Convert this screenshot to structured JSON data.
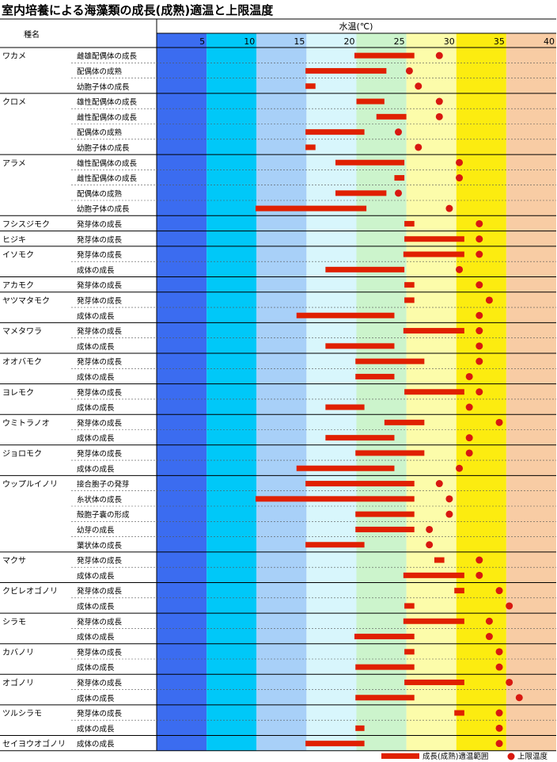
{
  "title": "室内培養による海藻類の成長(成熟)適温と上限温度",
  "chart_data": {
    "type": "range-dot",
    "title": "室内培養による海藻類の成長(成熟)適温と上限温度",
    "xlabel": "水温(℃)",
    "row_header": "種名",
    "xlim": [
      0,
      40
    ],
    "xticks": [
      5,
      10,
      15,
      20,
      25,
      30,
      35,
      40
    ],
    "bands": [
      {
        "from": 0,
        "to": 5,
        "color": "#3b6cf0"
      },
      {
        "from": 5,
        "to": 10,
        "color": "#00c8f8"
      },
      {
        "from": 10,
        "to": 15,
        "color": "#a8d0f8"
      },
      {
        "from": 15,
        "to": 20,
        "color": "#d8f6fc"
      },
      {
        "from": 20,
        "to": 25,
        "color": "#ccf4cc"
      },
      {
        "from": 25,
        "to": 30,
        "color": "#fcfcaa"
      },
      {
        "from": 30,
        "to": 35,
        "color": "#fcec10"
      },
      {
        "from": 35,
        "to": 40,
        "color": "#f8cca4"
      }
    ],
    "legend": {
      "range": "成長(成熟)適温範囲",
      "upper": "上限温度",
      "position": "bottom-right"
    },
    "colors": {
      "bar": "#e02000",
      "dot": "#d81810"
    },
    "species": [
      {
        "name": "ワカメ",
        "rows": [
          {
            "stage": "雌雄配偶体の成長",
            "range": [
              19.8,
              25.8
            ],
            "upper": 28.3
          },
          {
            "stage": "配偶体の成熟",
            "range": [
              14.9,
              23.0
            ],
            "upper": 25.3
          },
          {
            "stage": "幼胞子体の成長",
            "range": [
              14.9,
              15.9
            ],
            "upper": 26.2
          }
        ]
      },
      {
        "name": "クロメ",
        "rows": [
          {
            "stage": "雄性配偶体の成長",
            "range": [
              20.0,
              22.8
            ],
            "upper": 28.3
          },
          {
            "stage": "雌性配偶体の成長",
            "range": [
              22.0,
              25.0
            ],
            "upper": 28.3
          },
          {
            "stage": "配偶体の成熟",
            "range": [
              14.9,
              20.8
            ],
            "upper": 24.2
          },
          {
            "stage": "幼胞子体の成長",
            "range": [
              14.9,
              15.9
            ],
            "upper": 26.2
          }
        ]
      },
      {
        "name": "アラメ",
        "rows": [
          {
            "stage": "雄性配偶体の成長",
            "range": [
              17.9,
              24.8
            ],
            "upper": 30.3
          },
          {
            "stage": "雌性配偶体の成長",
            "range": [
              23.8,
              24.8
            ],
            "upper": 30.3
          },
          {
            "stage": "配偶体の成熟",
            "range": [
              17.9,
              23.0
            ],
            "upper": 24.2
          },
          {
            "stage": "幼胞子体の成長",
            "range": [
              9.9,
              21.0
            ],
            "upper": 29.3
          }
        ]
      },
      {
        "name": "フシスジモク",
        "rows": [
          {
            "stage": "発芽体の成長",
            "range": [
              24.8,
              25.8
            ],
            "upper": 32.3
          }
        ]
      },
      {
        "name": "ヒジキ",
        "rows": [
          {
            "stage": "発芽体の成長",
            "range": [
              24.8,
              30.8
            ],
            "upper": 32.3
          }
        ]
      },
      {
        "name": "イソモク",
        "rows": [
          {
            "stage": "発芽体の成長",
            "range": [
              24.7,
              30.8
            ],
            "upper": 32.3
          },
          {
            "stage": "成体の成長",
            "range": [
              16.9,
              24.8
            ],
            "upper": 30.3
          }
        ]
      },
      {
        "name": "アカモク",
        "rows": [
          {
            "stage": "発芽体の成長",
            "range": [
              24.8,
              25.8
            ],
            "upper": 32.3
          }
        ]
      },
      {
        "name": "ヤツマタモク",
        "rows": [
          {
            "stage": "発芽体の成長",
            "range": [
              24.8,
              25.8
            ],
            "upper": 33.3
          },
          {
            "stage": "成体の成長",
            "range": [
              14.0,
              23.8
            ],
            "upper": 32.3
          }
        ]
      },
      {
        "name": "マメタワラ",
        "rows": [
          {
            "stage": "発芽体の成長",
            "range": [
              24.7,
              30.8
            ],
            "upper": 32.3
          },
          {
            "stage": "成体の成長",
            "range": [
              16.9,
              23.8
            ],
            "upper": 32.3
          }
        ]
      },
      {
        "name": "オオバモク",
        "rows": [
          {
            "stage": "発芽体の成長",
            "range": [
              19.9,
              26.8
            ],
            "upper": 32.3
          },
          {
            "stage": "成体の成長",
            "range": [
              19.9,
              23.8
            ],
            "upper": 31.3
          }
        ]
      },
      {
        "name": "ヨレモク",
        "rows": [
          {
            "stage": "発芽体の成長",
            "range": [
              24.8,
              30.8
            ],
            "upper": 32.3
          },
          {
            "stage": "成体の成長",
            "range": [
              16.9,
              20.8
            ],
            "upper": 31.3
          }
        ]
      },
      {
        "name": "ウミトラノオ",
        "rows": [
          {
            "stage": "発芽体の成長",
            "range": [
              22.8,
              26.8
            ],
            "upper": 34.3
          },
          {
            "stage": "成体の成長",
            "range": [
              16.9,
              23.8
            ],
            "upper": 31.3
          }
        ]
      },
      {
        "name": "ジョロモク",
        "rows": [
          {
            "stage": "発芽体の成長",
            "range": [
              19.9,
              26.8
            ],
            "upper": 31.3
          },
          {
            "stage": "成体の成長",
            "range": [
              14.0,
              23.8
            ],
            "upper": 30.3
          }
        ]
      },
      {
        "name": "ウップルイノリ",
        "rows": [
          {
            "stage": "接合胞子の発芽",
            "range": [
              14.9,
              25.8
            ],
            "upper": 28.3
          },
          {
            "stage": "糸状体の成長",
            "range": [
              9.9,
              25.8
            ],
            "upper": 29.3
          },
          {
            "stage": "殻胞子嚢の形成",
            "range": [
              19.9,
              25.8
            ],
            "upper": 29.3
          },
          {
            "stage": "幼芽の成長",
            "range": [
              19.9,
              25.8
            ],
            "upper": 27.3
          },
          {
            "stage": "葉状体の成長",
            "range": [
              14.9,
              20.8
            ],
            "upper": 27.3
          }
        ]
      },
      {
        "name": "マクサ",
        "rows": [
          {
            "stage": "発芽体の成長",
            "range": [
              27.8,
              28.8
            ],
            "upper": 32.3
          },
          {
            "stage": "成体の成長",
            "range": [
              24.7,
              30.8
            ],
            "upper": 32.3
          }
        ]
      },
      {
        "name": "クビレオゴノリ",
        "rows": [
          {
            "stage": "発芽体の成長",
            "range": [
              29.8,
              30.8
            ],
            "upper": 34.3
          },
          {
            "stage": "成体の成長",
            "range": [
              24.8,
              25.8
            ],
            "upper": 35.3
          }
        ]
      },
      {
        "name": "シラモ",
        "rows": [
          {
            "stage": "発芽体の成長",
            "range": [
              24.7,
              30.8
            ],
            "upper": 33.3
          },
          {
            "stage": "成体の成長",
            "range": [
              19.8,
              25.8
            ],
            "upper": 33.3
          }
        ]
      },
      {
        "name": "カバノリ",
        "rows": [
          {
            "stage": "発芽体の成長",
            "range": [
              24.8,
              25.8
            ],
            "upper": 34.3
          },
          {
            "stage": "成体の成長",
            "range": [
              19.9,
              25.8
            ],
            "upper": 34.3
          }
        ]
      },
      {
        "name": "オゴノリ",
        "rows": [
          {
            "stage": "発芽体の成長",
            "range": [
              24.8,
              30.8
            ],
            "upper": 35.3
          },
          {
            "stage": "成体の成長",
            "range": [
              19.9,
              25.8
            ],
            "upper": 36.3
          }
        ]
      },
      {
        "name": "ツルシラモ",
        "rows": [
          {
            "stage": "発芽体の成長",
            "range": [
              29.8,
              30.8
            ],
            "upper": 34.3
          },
          {
            "stage": "成体の成長",
            "range": [
              19.9,
              20.8
            ],
            "upper": 34.3
          }
        ]
      },
      {
        "name": "セイヨウオゴノリ",
        "rows": [
          {
            "stage": "成体の成長",
            "range": [
              14.9,
              20.8
            ],
            "upper": 34.3
          }
        ]
      }
    ]
  }
}
